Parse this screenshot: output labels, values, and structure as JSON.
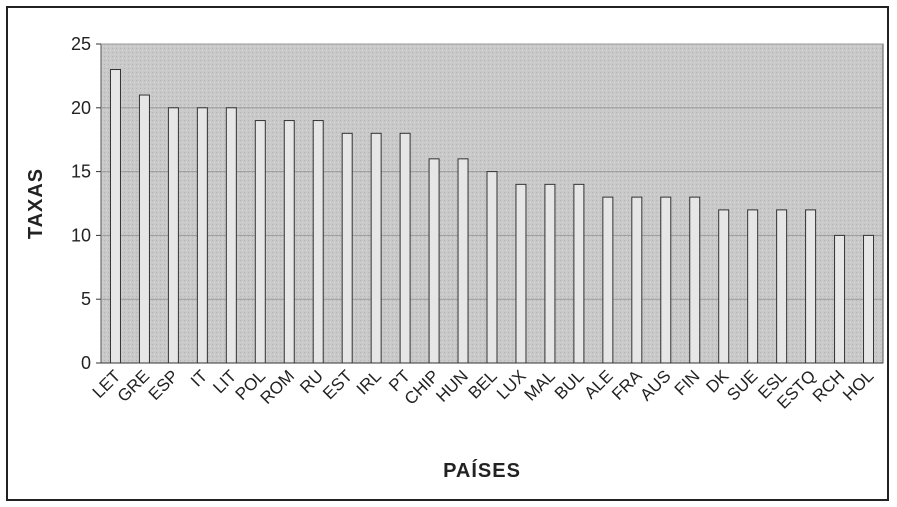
{
  "chart_data": {
    "type": "bar",
    "title": "",
    "xlabel": "PAÍSES",
    "ylabel": "TAXAS",
    "ylim": [
      0,
      25
    ],
    "yticks": [
      0,
      5,
      10,
      15,
      20,
      25
    ],
    "grid": true,
    "categories": [
      "LET",
      "GRE",
      "ESP",
      "IT",
      "LIT",
      "POL",
      "ROM",
      "RU",
      "EST",
      "IRL",
      "PT",
      "CHIP",
      "HUN",
      "BEL",
      "LUX",
      "MAL",
      "BUL",
      "ALE",
      "FRA",
      "AUS",
      "FIN",
      "DK",
      "SUE",
      "ESL",
      "ESTQ",
      "RCH",
      "HOL"
    ],
    "values": [
      23,
      21,
      20,
      20,
      20,
      19,
      19,
      19,
      18,
      18,
      18,
      16,
      16,
      15,
      14,
      14,
      14,
      13,
      13,
      13,
      13,
      12,
      12,
      12,
      12,
      10,
      10
    ],
    "colors": {
      "plot_bg": "#c8c8c8",
      "bar_fill": "#e6e6e6",
      "bar_stroke": "#333333",
      "grid": "#9a9a9a"
    }
  }
}
